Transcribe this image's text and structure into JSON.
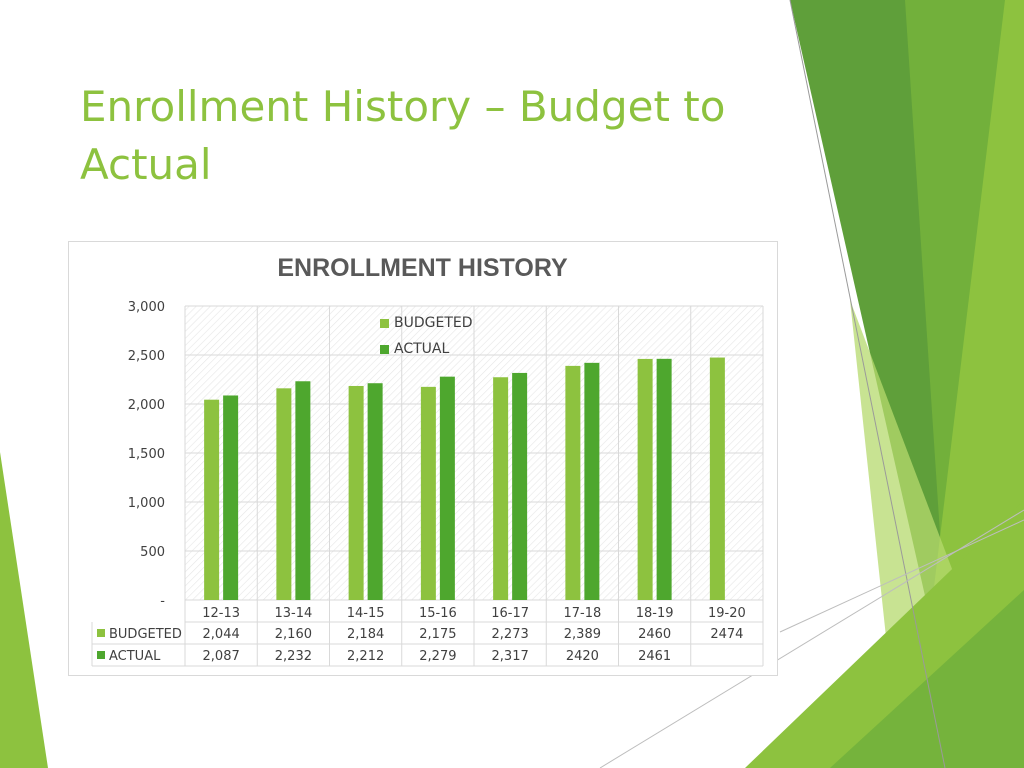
{
  "slide": {
    "title": "Enrollment History – Budget to Actual"
  },
  "colors": {
    "title": "#8dc23f",
    "budgeted": "#8dc23f",
    "actual": "#4ea72e",
    "deco_light": "#b5d96b",
    "deco_dark": "#5c9a3a"
  },
  "chart_data": {
    "type": "bar",
    "title": "ENROLLMENT HISTORY",
    "categories": [
      "12-13",
      "13-14",
      "14-15",
      "15-16",
      "16-17",
      "17-18",
      "18-19",
      "19-20"
    ],
    "series": [
      {
        "name": "BUDGETED",
        "values": [
          2044,
          2160,
          2184,
          2175,
          2273,
          2389,
          2460,
          2474
        ],
        "labels": [
          "2,044",
          "2,160",
          "2,184",
          "2,175",
          "2,273",
          "2,389",
          "2460",
          "2474"
        ]
      },
      {
        "name": "ACTUAL",
        "values": [
          2087,
          2232,
          2212,
          2279,
          2317,
          2420,
          2461,
          null
        ],
        "labels": [
          "2,087",
          "2,232",
          "2,212",
          "2,279",
          "2,317",
          "2420",
          "2461",
          ""
        ]
      }
    ],
    "y_ticks": [
      {
        "value": 0,
        "label": "-"
      },
      {
        "value": 500,
        "label": "500"
      },
      {
        "value": 1000,
        "label": "1,000"
      },
      {
        "value": 1500,
        "label": "1,500"
      },
      {
        "value": 2000,
        "label": "2,000"
      },
      {
        "value": 2500,
        "label": "2,500"
      },
      {
        "value": 3000,
        "label": "3,000"
      }
    ],
    "ylim": [
      0,
      3000
    ],
    "grid": true,
    "legend_position": "top-center",
    "data_table": true
  }
}
